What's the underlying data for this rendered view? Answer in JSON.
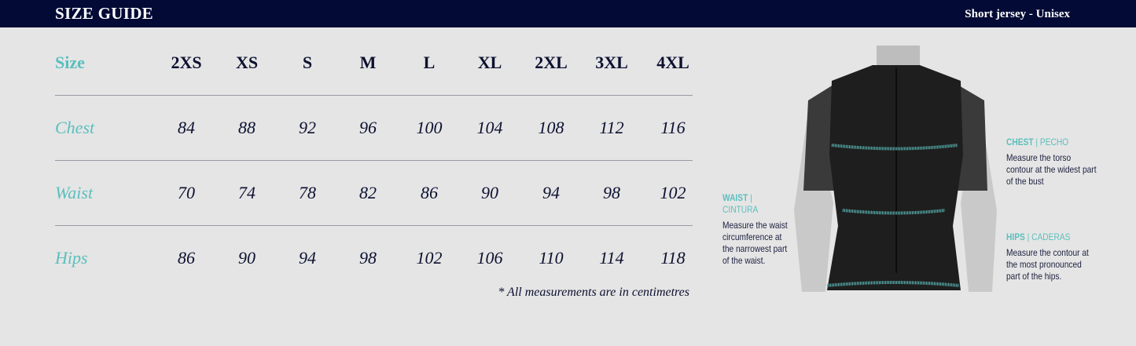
{
  "header": {
    "title": "SIZE GUIDE",
    "subtitle": "Short jersey - Unisex"
  },
  "table": {
    "size_label": "Size",
    "sizes": [
      "2XS",
      "XS",
      "S",
      "M",
      "L",
      "XL",
      "2XL",
      "3XL",
      "4XL"
    ],
    "rows": [
      {
        "label": "Chest",
        "values": [
          "84",
          "88",
          "92",
          "96",
          "100",
          "104",
          "108",
          "112",
          "116"
        ]
      },
      {
        "label": "Waist",
        "values": [
          "70",
          "74",
          "78",
          "82",
          "86",
          "90",
          "94",
          "98",
          "102"
        ]
      },
      {
        "label": "Hips",
        "values": [
          "86",
          "90",
          "94",
          "98",
          "102",
          "106",
          "110",
          "114",
          "118"
        ]
      }
    ],
    "note": "* All measurements are in centimetres"
  },
  "guide": {
    "chest": {
      "title": "CHEST",
      "title_es": "| PECHO",
      "desc": "Measure the torso contour at the widest part of the bust"
    },
    "waist": {
      "title": "WAIST",
      "title_es": "| CINTURA",
      "desc": "Measure the waist circumference at the narrowest part of the waist."
    },
    "hips": {
      "title": "HIPS",
      "title_es": "| CADERAS",
      "desc": "Measure the contour at the most pronounced part of the hips."
    }
  },
  "colors": {
    "header_bg": "#020a35",
    "accent": "#5bbfbd",
    "background": "#e5e5e5",
    "text": "#0b1030"
  }
}
